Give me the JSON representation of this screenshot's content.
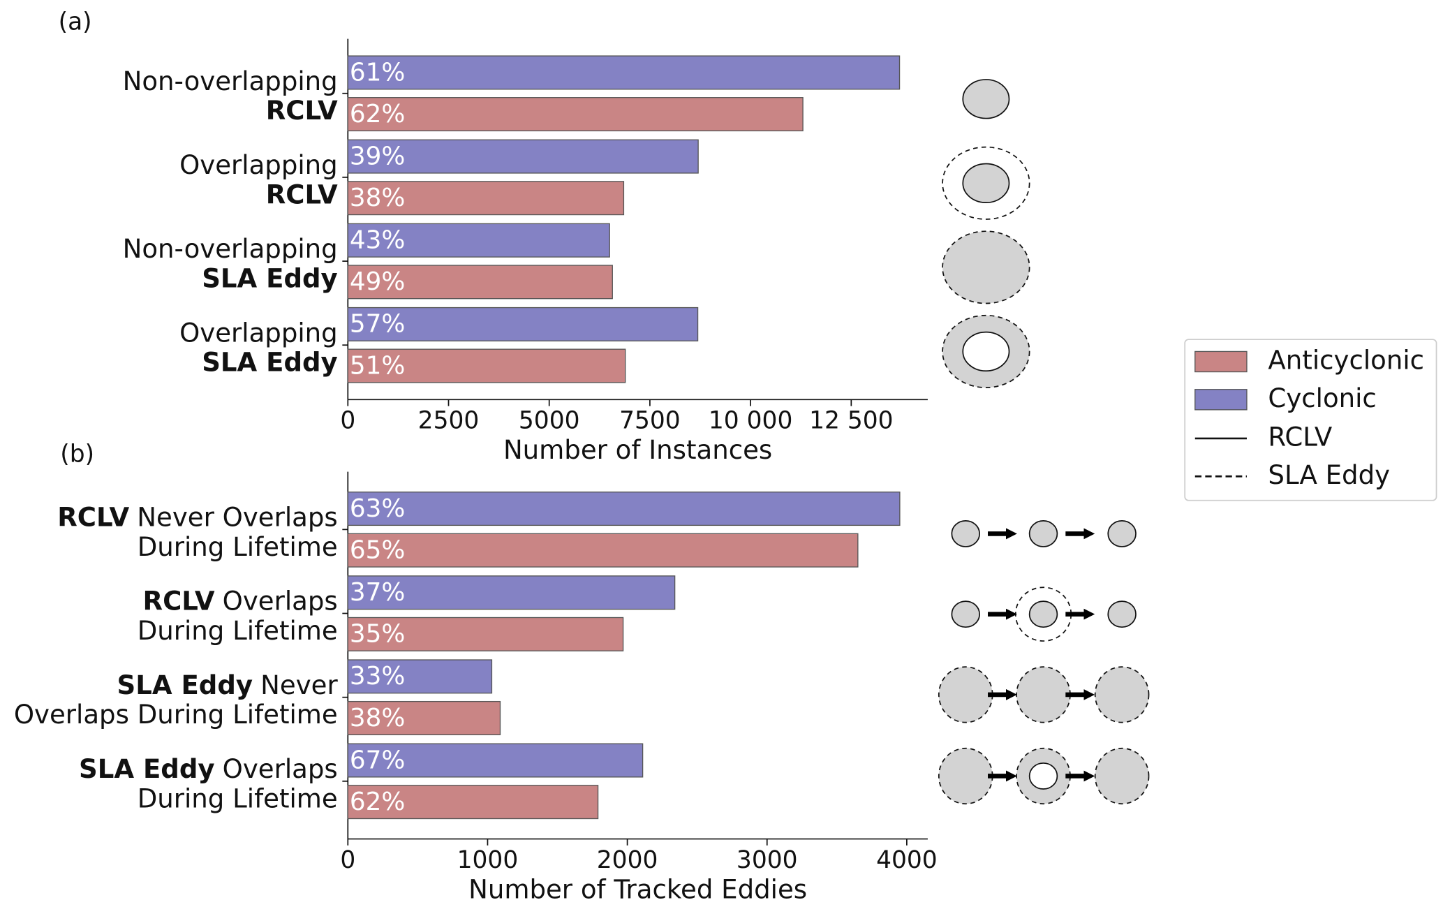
{
  "chart_data": [
    {
      "type": "barh",
      "panel": "(a)",
      "x_label": "Number of Instances",
      "categories": [
        {
          "lines": [
            [
              {
                "text": "Non-overlapping"
              }
            ],
            [
              {
                "text": "RCLV",
                "bold": true
              }
            ]
          ]
        },
        {
          "lines": [
            [
              {
                "text": "Overlapping"
              }
            ],
            [
              {
                "text": "RCLV",
                "bold": true
              }
            ]
          ]
        },
        {
          "lines": [
            [
              {
                "text": "Non-overlapping"
              }
            ],
            [
              {
                "text": "SLA Eddy",
                "bold": true
              }
            ]
          ]
        },
        {
          "lines": [
            [
              {
                "text": "Overlapping"
              }
            ],
            [
              {
                "text": "SLA Eddy",
                "bold": true
              }
            ]
          ]
        }
      ],
      "series": [
        {
          "name": "Anticyclonic",
          "color": "#c98585",
          "values": [
            11300,
            6850,
            6570,
            6890
          ],
          "labels": [
            "62%",
            "38%",
            "49%",
            "51%"
          ]
        },
        {
          "name": "Cyclonic",
          "color": "#8482c4",
          "values": [
            13700,
            8700,
            6500,
            8690
          ],
          "labels": [
            "61%",
            "39%",
            "43%",
            "57%"
          ]
        }
      ],
      "xlim": [
        0,
        14400
      ],
      "xticks": [
        0,
        2500,
        5000,
        7500,
        {
          "value": 10000,
          "label": "10 000"
        },
        {
          "value": 12500,
          "label": "12 500"
        }
      ]
    },
    {
      "type": "barh",
      "panel": "(b)",
      "x_label": "Number of Tracked Eddies",
      "categories": [
        {
          "lines": [
            [
              {
                "text": "RCLV",
                "bold": true
              },
              {
                "text": "Never Overlaps"
              }
            ],
            [
              {
                "text": "During Lifetime"
              }
            ]
          ]
        },
        {
          "lines": [
            [
              {
                "text": "RCLV",
                "bold": true
              },
              {
                "text": "Overlaps"
              }
            ],
            [
              {
                "text": "During Lifetime"
              }
            ]
          ]
        },
        {
          "lines": [
            [
              {
                "text": "SLA Eddy",
                "bold": true
              },
              {
                "text": "Never"
              }
            ],
            [
              {
                "text": "Overlaps During Lifetime"
              }
            ]
          ]
        },
        {
          "lines": [
            [
              {
                "text": "SLA Eddy",
                "bold": true
              },
              {
                "text": "Overlaps"
              }
            ],
            [
              {
                "text": "During Lifetime"
              }
            ]
          ]
        }
      ],
      "series": [
        {
          "name": "Anticyclonic",
          "color": "#c98585",
          "values": [
            3650,
            1970,
            1090,
            1790
          ],
          "labels": [
            "65%",
            "35%",
            "38%",
            "62%"
          ]
        },
        {
          "name": "Cyclonic",
          "color": "#8482c4",
          "values": [
            3950,
            2340,
            1030,
            2110
          ],
          "labels": [
            "63%",
            "37%",
            "33%",
            "67%"
          ]
        }
      ],
      "xlim": [
        0,
        4150
      ],
      "xticks": [
        0,
        1000,
        2000,
        3000,
        4000
      ]
    }
  ],
  "legend_lines": [
    {
      "name": "RCLV",
      "style": "solid"
    },
    {
      "name": "SLA Eddy",
      "style": "dashed"
    }
  ]
}
